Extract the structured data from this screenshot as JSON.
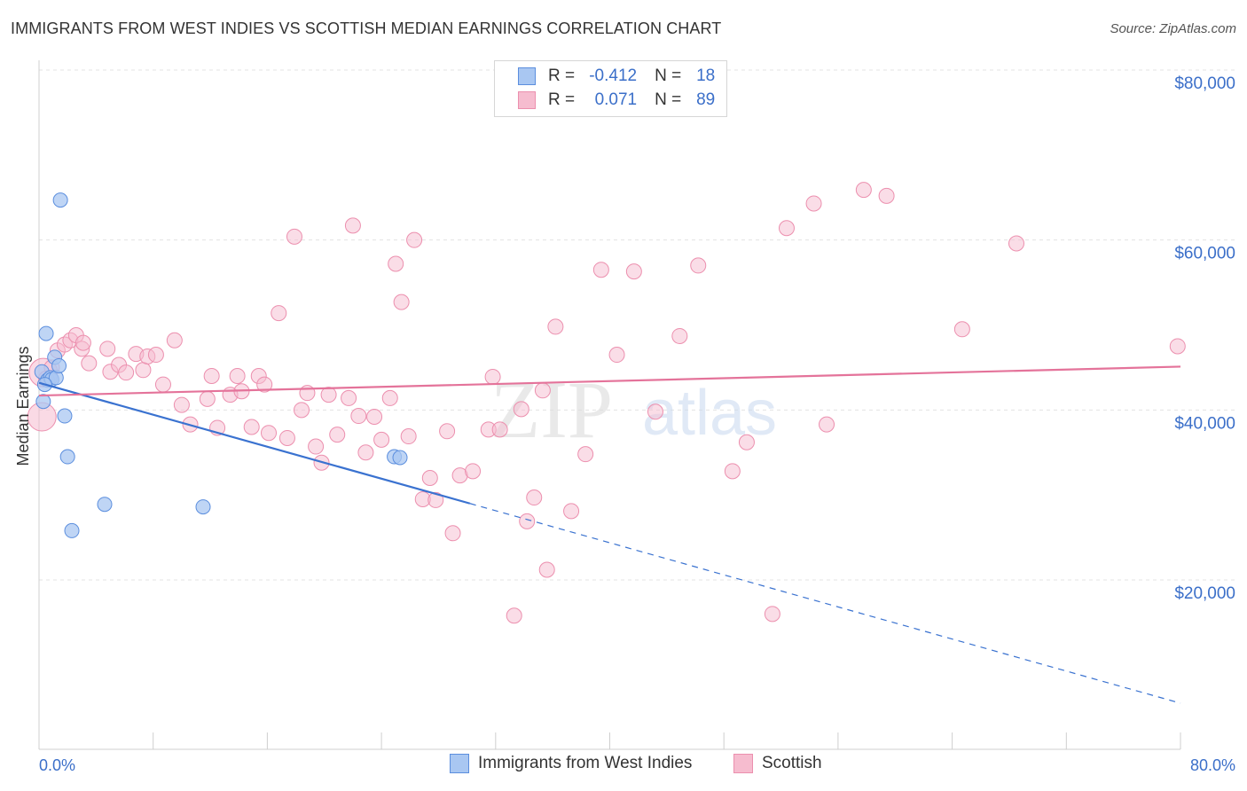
{
  "title": "IMMIGRANTS FROM WEST INDIES VS SCOTTISH MEDIAN EARNINGS CORRELATION CHART",
  "source": "Source: ZipAtlas.com",
  "watermark": {
    "zip": "ZIP",
    "atlas": "atlas"
  },
  "legend": {
    "series1": {
      "r_label": "R =",
      "r_value": "-0.412",
      "n_label": "N =",
      "n_value": "18"
    },
    "series2": {
      "r_label": "R =",
      "r_value": "0.071",
      "n_label": "N =",
      "n_value": "89"
    }
  },
  "colors": {
    "blue_fill": "#a9c7f2",
    "blue_stroke": "#5b8ede",
    "blue_line": "#3a72d0",
    "pink_fill": "#f6bccf",
    "pink_stroke": "#ec8fae",
    "pink_line": "#e4739a",
    "axis_text": "#3b6fc9",
    "grid": "#e3e3e3"
  },
  "chart_data": {
    "type": "scatter",
    "title": "IMMIGRANTS FROM WEST INDIES VS SCOTTISH MEDIAN EARNINGS CORRELATION CHART",
    "xlabel": "",
    "ylabel": "Median Earnings",
    "xlim": [
      0,
      80
    ],
    "ylim": [
      0,
      82000
    ],
    "x_tick_labels": [
      "0.0%",
      "80.0%"
    ],
    "y_ticks": [
      20000,
      40000,
      60000,
      80000
    ],
    "y_tick_labels": [
      "$20,000",
      "$40,000",
      "$60,000",
      "$80,000"
    ],
    "grid": true,
    "legend_position": "top-center",
    "series": [
      {
        "name": "Immigrants from West Indies",
        "color": "#a9c7f2",
        "points": [
          [
            0.2,
            44500
          ],
          [
            0.3,
            41000
          ],
          [
            0.5,
            49000
          ],
          [
            0.6,
            43500
          ],
          [
            0.8,
            43800
          ],
          [
            0.9,
            43600
          ],
          [
            1.1,
            46200
          ],
          [
            1.2,
            43800
          ],
          [
            1.4,
            45200
          ],
          [
            1.5,
            64700
          ],
          [
            1.8,
            39300
          ],
          [
            2.0,
            34500
          ],
          [
            2.3,
            25800
          ],
          [
            4.6,
            28900
          ],
          [
            11.5,
            28600
          ],
          [
            24.9,
            34500
          ],
          [
            25.3,
            34400
          ],
          [
            0.4,
            43000
          ]
        ],
        "trend": {
          "x": [
            0,
            30.2
          ],
          "y": [
            43200,
            29000
          ],
          "dashed_to": {
            "x": 80,
            "y": 5500
          }
        }
      },
      {
        "name": "Scottish",
        "color": "#f6bccf",
        "points": [
          [
            0.2,
            39200
          ],
          [
            0.3,
            44400
          ],
          [
            0.5,
            43700
          ],
          [
            0.9,
            45000
          ],
          [
            1.3,
            47000
          ],
          [
            1.8,
            47700
          ],
          [
            2.2,
            48200
          ],
          [
            2.6,
            48800
          ],
          [
            3.0,
            47200
          ],
          [
            3.5,
            45500
          ],
          [
            4.8,
            47200
          ],
          [
            5.0,
            44500
          ],
          [
            5.6,
            45300
          ],
          [
            6.1,
            44400
          ],
          [
            6.8,
            46600
          ],
          [
            7.3,
            44700
          ],
          [
            7.6,
            46300
          ],
          [
            8.2,
            46500
          ],
          [
            8.7,
            43000
          ],
          [
            9.5,
            48200
          ],
          [
            10.0,
            40600
          ],
          [
            10.6,
            38300
          ],
          [
            11.8,
            41300
          ],
          [
            12.1,
            44000
          ],
          [
            12.5,
            37900
          ],
          [
            13.4,
            41800
          ],
          [
            13.9,
            44000
          ],
          [
            14.2,
            42200
          ],
          [
            14.9,
            38000
          ],
          [
            15.4,
            44000
          ],
          [
            15.8,
            43000
          ],
          [
            16.1,
            37300
          ],
          [
            16.8,
            51400
          ],
          [
            17.4,
            36700
          ],
          [
            17.9,
            60400
          ],
          [
            18.4,
            40000
          ],
          [
            18.8,
            42000
          ],
          [
            19.4,
            35700
          ],
          [
            19.8,
            33800
          ],
          [
            20.3,
            41800
          ],
          [
            20.9,
            37100
          ],
          [
            21.7,
            41400
          ],
          [
            22.0,
            61700
          ],
          [
            22.4,
            39300
          ],
          [
            22.9,
            35000
          ],
          [
            23.5,
            39200
          ],
          [
            24.0,
            36500
          ],
          [
            24.6,
            41400
          ],
          [
            25.0,
            57200
          ],
          [
            25.4,
            52700
          ],
          [
            25.9,
            36900
          ],
          [
            26.3,
            60000
          ],
          [
            26.9,
            29500
          ],
          [
            27.4,
            32000
          ],
          [
            27.8,
            29400
          ],
          [
            28.6,
            37500
          ],
          [
            29.0,
            25500
          ],
          [
            29.5,
            32300
          ],
          [
            30.4,
            32800
          ],
          [
            31.5,
            37700
          ],
          [
            31.8,
            43900
          ],
          [
            32.3,
            37700
          ],
          [
            33.3,
            15800
          ],
          [
            33.8,
            40100
          ],
          [
            34.2,
            26900
          ],
          [
            34.7,
            29700
          ],
          [
            35.3,
            42300
          ],
          [
            35.6,
            21200
          ],
          [
            36.2,
            49800
          ],
          [
            37.3,
            28100
          ],
          [
            38.3,
            34800
          ],
          [
            39.4,
            56500
          ],
          [
            40.5,
            46500
          ],
          [
            41.7,
            56300
          ],
          [
            43.2,
            39800
          ],
          [
            44.9,
            48700
          ],
          [
            46.2,
            57000
          ],
          [
            48.6,
            32800
          ],
          [
            49.6,
            36200
          ],
          [
            51.4,
            16000
          ],
          [
            52.4,
            61400
          ],
          [
            54.3,
            64300
          ],
          [
            55.2,
            38300
          ],
          [
            57.8,
            65900
          ],
          [
            59.4,
            65200
          ],
          [
            64.7,
            49500
          ],
          [
            68.5,
            59600
          ],
          [
            79.8,
            47500
          ],
          [
            3.1,
            47900
          ]
        ],
        "trend": {
          "x": [
            0,
            80
          ],
          "y": [
            41700,
            45100
          ]
        }
      }
    ]
  },
  "axes": {
    "y_label": "Median Earnings",
    "x_min_label": "0.0%",
    "x_max_label": "80.0%",
    "y_tick_labels": [
      "$20,000",
      "$40,000",
      "$60,000",
      "$80,000"
    ]
  },
  "bottom_legend": {
    "item1": "Immigrants from West Indies",
    "item2": "Scottish"
  }
}
